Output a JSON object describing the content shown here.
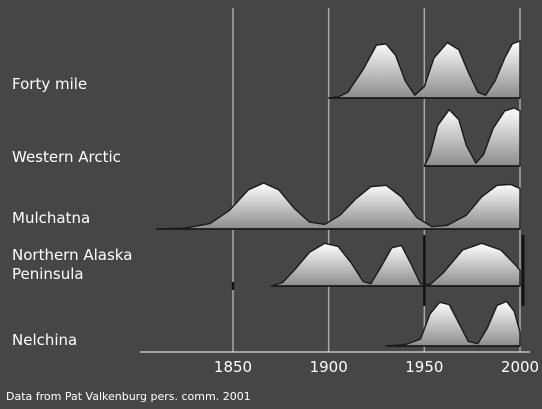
{
  "chart_data": {
    "type": "area",
    "title": "",
    "xlabel": "",
    "ylabel": "",
    "xlim": [
      1810,
      2000
    ],
    "x_ticks": [
      1850,
      1900,
      1950,
      2000
    ],
    "grid": true,
    "caption": "Data from Pat Valkenburg pers. comm. 2001",
    "background_color": "#464646",
    "fill_gradient": [
      "#ffffff",
      "#8c8c8c"
    ],
    "outline_color": "#1a1a1a",
    "series": [
      {
        "name": "Forty mile",
        "points": [
          [
            1900,
            0
          ],
          [
            1905,
            0.02
          ],
          [
            1910,
            0.1
          ],
          [
            1918,
            0.5
          ],
          [
            1925,
            0.93
          ],
          [
            1930,
            0.95
          ],
          [
            1935,
            0.75
          ],
          [
            1940,
            0.3
          ],
          [
            1945,
            0.05
          ],
          [
            1950,
            0.2
          ],
          [
            1955,
            0.7
          ],
          [
            1962,
            0.97
          ],
          [
            1968,
            0.85
          ],
          [
            1973,
            0.45
          ],
          [
            1978,
            0.1
          ],
          [
            1982,
            0.05
          ],
          [
            1987,
            0.3
          ],
          [
            1992,
            0.7
          ],
          [
            1996,
            0.95
          ],
          [
            2000,
            1.0
          ],
          [
            2000,
            0
          ]
        ]
      },
      {
        "name": "Western Arctic",
        "points": [
          [
            1950,
            0
          ],
          [
            1953,
            0.2
          ],
          [
            1957,
            0.7
          ],
          [
            1963,
            0.97
          ],
          [
            1968,
            0.8
          ],
          [
            1972,
            0.35
          ],
          [
            1977,
            0.05
          ],
          [
            1981,
            0.2
          ],
          [
            1986,
            0.65
          ],
          [
            1992,
            0.95
          ],
          [
            1997,
            1.0
          ],
          [
            2000,
            0.95
          ],
          [
            2000,
            0
          ]
        ]
      },
      {
        "name": "Mulchatna",
        "points": [
          [
            1810,
            0
          ],
          [
            1825,
            0.02
          ],
          [
            1838,
            0.12
          ],
          [
            1848,
            0.4
          ],
          [
            1858,
            0.85
          ],
          [
            1866,
            1.0
          ],
          [
            1874,
            0.85
          ],
          [
            1882,
            0.45
          ],
          [
            1890,
            0.15
          ],
          [
            1898,
            0.1
          ],
          [
            1906,
            0.3
          ],
          [
            1914,
            0.65
          ],
          [
            1922,
            0.92
          ],
          [
            1930,
            0.95
          ],
          [
            1938,
            0.7
          ],
          [
            1946,
            0.25
          ],
          [
            1954,
            0.05
          ],
          [
            1962,
            0.08
          ],
          [
            1972,
            0.3
          ],
          [
            1980,
            0.7
          ],
          [
            1988,
            0.95
          ],
          [
            1995,
            0.97
          ],
          [
            2000,
            0.88
          ],
          [
            2000,
            0
          ]
        ]
      },
      {
        "name": "Northern Alaska Peninsula",
        "points": [
          [
            1870,
            0
          ],
          [
            1876,
            0.08
          ],
          [
            1882,
            0.35
          ],
          [
            1890,
            0.75
          ],
          [
            1898,
            0.95
          ],
          [
            1905,
            0.88
          ],
          [
            1912,
            0.5
          ],
          [
            1918,
            0.1
          ],
          [
            1922,
            0.05
          ],
          [
            1927,
            0.4
          ],
          [
            1933,
            0.85
          ],
          [
            1938,
            0.9
          ],
          [
            1943,
            0.5
          ],
          [
            1948,
            0.05
          ],
          [
            1953,
            0.03
          ],
          [
            1960,
            0.3
          ],
          [
            1970,
            0.8
          ],
          [
            1980,
            0.95
          ],
          [
            1990,
            0.8
          ],
          [
            1998,
            0.45
          ],
          [
            2000,
            0.35
          ],
          [
            2000,
            0
          ]
        ],
        "markers": [
          1850,
          1950,
          2000
        ]
      },
      {
        "name": "Nelchina",
        "points": [
          [
            1930,
            0
          ],
          [
            1940,
            0.03
          ],
          [
            1948,
            0.15
          ],
          [
            1953,
            0.7
          ],
          [
            1958,
            0.95
          ],
          [
            1963,
            0.9
          ],
          [
            1968,
            0.5
          ],
          [
            1973,
            0.1
          ],
          [
            1978,
            0.05
          ],
          [
            1983,
            0.4
          ],
          [
            1988,
            0.88
          ],
          [
            1993,
            0.97
          ],
          [
            1997,
            0.75
          ],
          [
            2000,
            0.3
          ],
          [
            2000,
            0
          ]
        ]
      }
    ]
  }
}
